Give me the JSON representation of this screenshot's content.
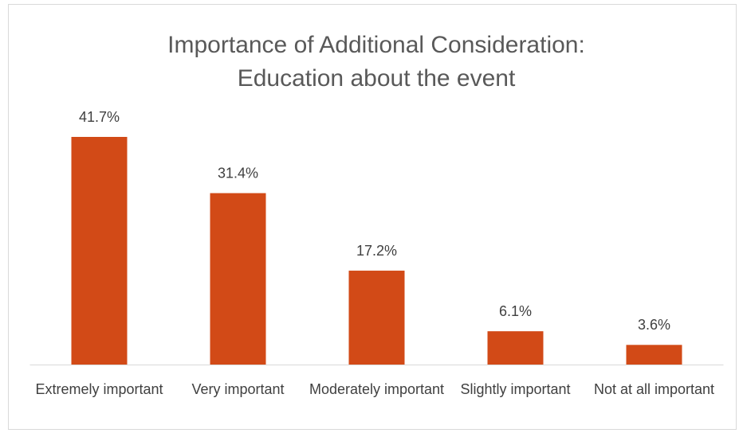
{
  "chart_data": {
    "type": "bar",
    "title": [
      "Importance of Additional Consideration:",
      "Education about the event"
    ],
    "categories": [
      "Extremely important",
      "Very important",
      "Moderately important",
      "Slightly important",
      "Not at all important"
    ],
    "values": [
      41.7,
      31.4,
      17.2,
      6.1,
      3.6
    ],
    "value_labels": [
      "41.7%",
      "31.4%",
      "17.2%",
      "6.1%",
      "3.6%"
    ],
    "color": "#d24a17"
  }
}
